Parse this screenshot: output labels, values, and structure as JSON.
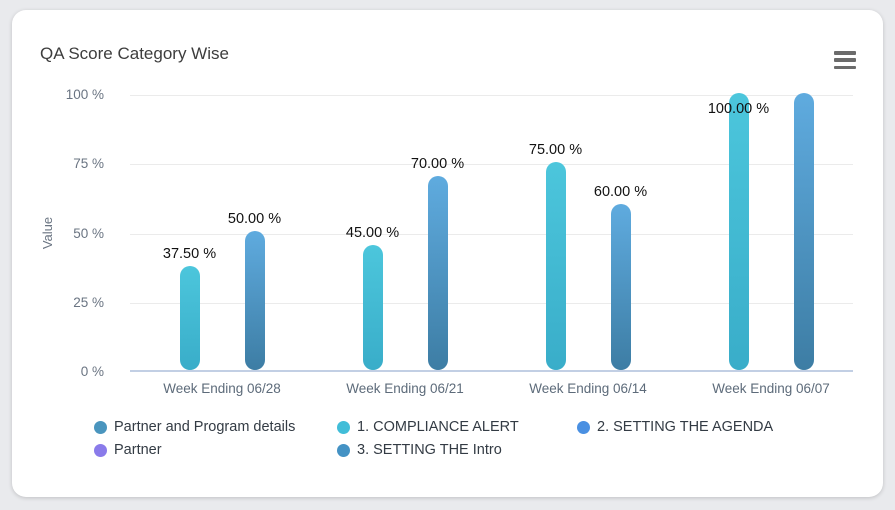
{
  "card": {
    "title": "QA Score Category Wise"
  },
  "chart_data": {
    "type": "bar",
    "title": "QA Score Category Wise",
    "xlabel": "",
    "ylabel": "Value",
    "ylim": [
      0,
      100
    ],
    "y_ticks": [
      "100 %",
      "75 %",
      "50 %",
      "25 %",
      "0 %"
    ],
    "grid": "horizontal",
    "legend_position": "bottom",
    "bar_style": "rounded-pill-gradient",
    "categories": [
      "Week Ending 06/28",
      "Week Ending 06/21",
      "Week Ending 06/14",
      "Week Ending 06/07"
    ],
    "series": [
      {
        "name": "Partner and Program details",
        "color": "#4a95be",
        "values": [
          null,
          null,
          null,
          null
        ]
      },
      {
        "name": "Partner",
        "color": "#8a7bea",
        "values": [
          null,
          null,
          null,
          null
        ]
      },
      {
        "name": "1. COMPLIANCE ALERT",
        "color": "#41bdd8",
        "gradient": [
          "#4cc6dc",
          "#39adc9"
        ],
        "values": [
          37.5,
          45,
          75,
          100
        ],
        "data_labels": [
          "37.50 %",
          "45.00 %",
          "75.00 %",
          "100.00 %"
        ]
      },
      {
        "name": "2. SETTING THE AGENDA",
        "color": "#4a90e2",
        "values": [
          null,
          null,
          null,
          null
        ]
      },
      {
        "name": "3. SETTING THE Intro",
        "color": "#4492c4",
        "gradient": [
          "#5fabdf",
          "#3d7da4"
        ],
        "values": [
          50,
          70,
          60,
          100
        ],
        "data_labels": [
          "50.00 %",
          "70.00 %",
          "60.00 %",
          ""
        ]
      }
    ],
    "legend": [
      {
        "label": "Partner and Program details",
        "color": "#4a95be"
      },
      {
        "label": "1. COMPLIANCE ALERT",
        "color": "#41bdd8"
      },
      {
        "label": "2. SETTING THE AGENDA",
        "color": "#4a90e2"
      },
      {
        "label": "Partner",
        "color": "#8a7bea"
      },
      {
        "label": "3. SETTING THE Intro",
        "color": "#4492c4"
      }
    ]
  }
}
